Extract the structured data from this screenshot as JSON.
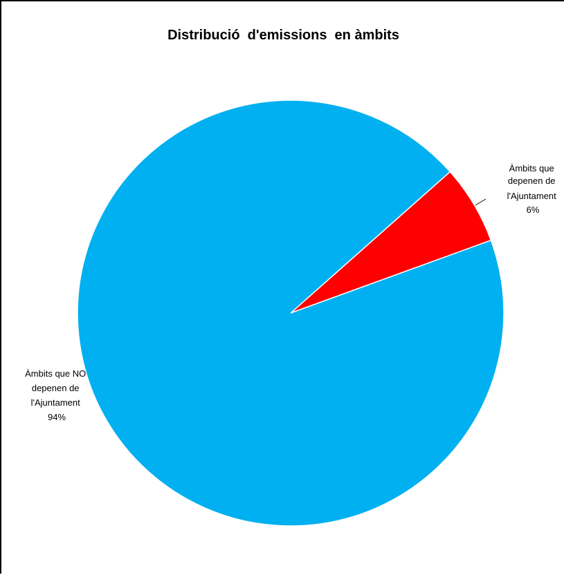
{
  "chart_data": {
    "type": "pie",
    "title": "Distribució  d'emissions  en àmbits",
    "slices": [
      {
        "label_lines": [
          "Àmbits que",
          "depenen de",
          "l'Ajuntament",
          "6%"
        ],
        "value": 6,
        "color": "#FF0000"
      },
      {
        "label_lines": [
          "Àmbits que NO",
          "depenen de",
          "l'Ajuntament",
          "94%"
        ],
        "value": 94,
        "color": "#00B0F0"
      }
    ]
  }
}
